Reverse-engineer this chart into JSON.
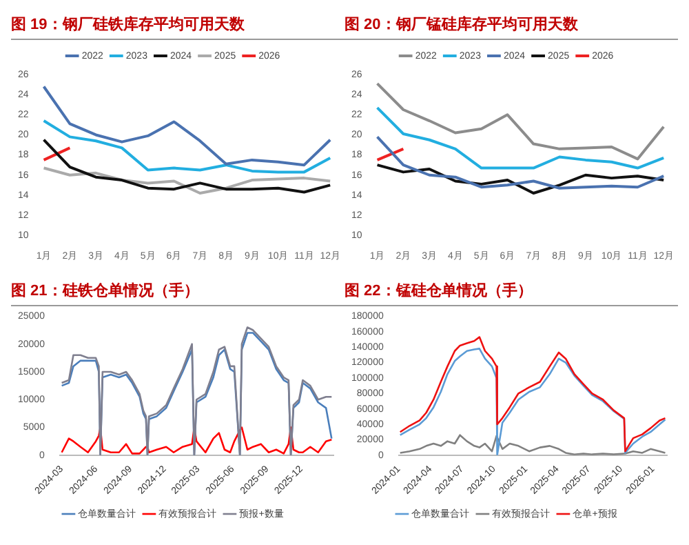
{
  "chart_data": [
    {
      "type": "line",
      "title": "图 19：钢厂硅铁库存平均可用天数",
      "categories": [
        "1月",
        "2月",
        "3月",
        "4月",
        "5月",
        "6月",
        "7月",
        "8月",
        "9月",
        "10月",
        "11月",
        "12月"
      ],
      "ylim": [
        10,
        26
      ],
      "yticks": [
        10,
        12,
        14,
        16,
        18,
        20,
        22,
        24,
        26
      ],
      "legend": "top",
      "marker": "none",
      "line_style": "solid",
      "series": [
        {
          "name": "2022",
          "color": "#4a72b0",
          "values": [
            24.8,
            21.1,
            20.0,
            19.3,
            19.9,
            21.3,
            19.4,
            17.1,
            17.5,
            17.3,
            17.0,
            19.5
          ]
        },
        {
          "name": "2023",
          "color": "#22aee0",
          "values": [
            21.4,
            19.8,
            19.4,
            18.7,
            16.5,
            16.7,
            16.5,
            17.0,
            16.4,
            16.3,
            16.3,
            17.7
          ]
        },
        {
          "name": "2024",
          "color": "#111111",
          "values": [
            19.5,
            16.8,
            15.8,
            15.5,
            14.7,
            14.6,
            15.2,
            14.6,
            14.6,
            14.7,
            14.3,
            15.0
          ]
        },
        {
          "name": "2025",
          "color": "#aaaaaa",
          "values": [
            16.7,
            16.0,
            16.2,
            15.5,
            15.2,
            15.4,
            14.2,
            14.7,
            15.5,
            15.6,
            15.7,
            15.4
          ]
        },
        {
          "name": "2026",
          "color": "#ee2222",
          "values": [
            17.5,
            18.7,
            null,
            null,
            null,
            null,
            null,
            null,
            null,
            null,
            null,
            null
          ]
        }
      ]
    },
    {
      "type": "line",
      "title": "图 20：钢厂锰硅库存平均可用天数",
      "categories": [
        "1月",
        "2月",
        "3月",
        "4月",
        "5月",
        "6月",
        "7月",
        "8月",
        "9月",
        "10月",
        "11月",
        "12月"
      ],
      "ylim": [
        10,
        26
      ],
      "yticks": [
        10,
        12,
        14,
        16,
        18,
        20,
        22,
        24,
        26
      ],
      "legend": "top",
      "marker": "none",
      "line_style": "solid",
      "series": [
        {
          "name": "2022",
          "color": "#8c8c8c",
          "values": [
            25.1,
            22.5,
            21.4,
            20.2,
            20.6,
            22.0,
            19.1,
            18.6,
            18.7,
            18.8,
            17.6,
            20.8
          ]
        },
        {
          "name": "2023",
          "color": "#22aee0",
          "values": [
            22.7,
            20.1,
            19.5,
            18.6,
            16.7,
            16.7,
            16.7,
            17.8,
            17.5,
            17.3,
            16.7,
            17.7
          ]
        },
        {
          "name": "2024",
          "color": "#4a72b0",
          "values": [
            19.8,
            17.0,
            16.0,
            15.8,
            14.8,
            15.0,
            15.4,
            14.7,
            14.8,
            14.9,
            14.8,
            15.9
          ]
        },
        {
          "name": "2025",
          "color": "#111111",
          "values": [
            17.0,
            16.3,
            16.6,
            15.4,
            15.1,
            15.5,
            14.2,
            15.0,
            16.0,
            15.7,
            15.9,
            15.5
          ]
        },
        {
          "name": "2026",
          "color": "#ee2222",
          "values": [
            17.5,
            18.6,
            null,
            null,
            null,
            null,
            null,
            null,
            null,
            null,
            null,
            null
          ]
        }
      ]
    },
    {
      "type": "line",
      "title": "图 21：硅铁仓单情况（手）",
      "x": [
        "2024-03-01",
        "2024-03-20",
        "2024-04-01",
        "2024-04-20",
        "2024-05-10",
        "2024-05-31",
        "2024-06-08",
        "2024-06-12",
        "2024-06-18",
        "2024-07-10",
        "2024-08-01",
        "2024-08-20",
        "2024-09-05",
        "2024-09-25",
        "2024-10-05",
        "2024-10-12",
        "2024-10-16",
        "2024-10-20",
        "2024-11-10",
        "2024-12-05",
        "2024-12-25",
        "2025-01-18",
        "2025-02-12",
        "2025-02-18",
        "2025-02-24",
        "2025-03-20",
        "2025-04-10",
        "2025-04-25",
        "2025-05-10",
        "2025-05-25",
        "2025-06-05",
        "2025-06-20",
        "2025-06-25",
        "2025-07-10",
        "2025-07-25",
        "2025-08-15",
        "2025-09-05",
        "2025-09-25",
        "2025-10-15",
        "2025-10-28",
        "2025-11-03",
        "2025-11-10",
        "2025-11-25",
        "2025-12-05",
        "2025-12-25",
        "2026-01-15",
        "2026-02-05",
        "2026-02-20"
      ],
      "xlim": [
        "2024-02-25",
        "2026-02-25"
      ],
      "xticks": [
        "2024-03",
        "2024-06",
        "2024-09",
        "2024-12",
        "2025-03",
        "2025-06",
        "2025-09",
        "2025-12"
      ],
      "ylim": [
        0,
        25000
      ],
      "yticks": [
        0,
        5000,
        10000,
        15000,
        20000,
        25000
      ],
      "legend": "bottom",
      "marker": "none",
      "line_style": "solid",
      "series": [
        {
          "name": "仓单数量合计",
          "color": "#4a7ebb",
          "values": [
            12500,
            13000,
            16000,
            17000,
            17000,
            17000,
            15000,
            0,
            14000,
            14500,
            14000,
            14500,
            13000,
            10500,
            7500,
            6500,
            0,
            6500,
            7000,
            8500,
            11500,
            15000,
            19000,
            0,
            9500,
            10500,
            14000,
            18000,
            19000,
            15500,
            15000,
            0,
            19000,
            22000,
            22000,
            20500,
            19000,
            15500,
            13500,
            13000,
            0,
            8500,
            9500,
            13000,
            12000,
            9500,
            8500,
            3000
          ]
        },
        {
          "name": "有效预报合计",
          "color": "#ff0000",
          "values": [
            500,
            3000,
            2500,
            1500,
            500,
            2500,
            3500,
            5000,
            1000,
            500,
            500,
            2000,
            300,
            300,
            1000,
            1500,
            1500,
            500,
            1000,
            1500,
            500,
            1500,
            2000,
            5000,
            2500,
            500,
            3000,
            4000,
            1000,
            500,
            2500,
            4500,
            5000,
            1000,
            1500,
            2000,
            500,
            1000,
            300,
            2000,
            5000,
            1000,
            500,
            500,
            1500,
            500,
            2500,
            2800
          ]
        },
        {
          "name": "预报+数量",
          "color": "#7f7f8f",
          "values": [
            13000,
            13500,
            18000,
            18000,
            17500,
            17500,
            16000,
            0,
            15000,
            15000,
            14500,
            15000,
            13500,
            11000,
            8000,
            7000,
            0,
            7000,
            7500,
            9000,
            12000,
            15500,
            20000,
            0,
            10000,
            11000,
            15000,
            19000,
            19500,
            16000,
            16000,
            0,
            20000,
            23000,
            22500,
            21000,
            19500,
            16000,
            14000,
            13500,
            0,
            9000,
            10000,
            13500,
            12500,
            10000,
            10500,
            10500
          ]
        }
      ]
    },
    {
      "type": "line",
      "title": "图 22：锰硅仓单情况（手）",
      "x": [
        "2024-01-05",
        "2024-02-01",
        "2024-03-01",
        "2024-03-20",
        "2024-04-10",
        "2024-05-01",
        "2024-05-20",
        "2024-06-10",
        "2024-06-25",
        "2024-07-15",
        "2024-08-05",
        "2024-08-20",
        "2024-09-05",
        "2024-09-25",
        "2024-10-08",
        "2024-10-10",
        "2024-10-25",
        "2024-11-15",
        "2024-12-10",
        "2025-01-10",
        "2025-02-10",
        "2025-03-10",
        "2025-04-05",
        "2025-04-25",
        "2025-05-20",
        "2025-06-15",
        "2025-07-10",
        "2025-08-10",
        "2025-09-10",
        "2025-10-10",
        "2025-10-13",
        "2025-11-05",
        "2025-12-01",
        "2025-12-25",
        "2026-01-20",
        "2026-02-05"
      ],
      "xlim": [
        "2024-01-01",
        "2026-02-10"
      ],
      "xticks": [
        "2024-01",
        "2024-04",
        "2024-07",
        "2024-10",
        "2025-01",
        "2025-04",
        "2025-07",
        "2025-10",
        "2026-01"
      ],
      "ylim": [
        0,
        180000
      ],
      "yticks": [
        0,
        20000,
        40000,
        60000,
        80000,
        100000,
        120000,
        140000,
        160000,
        180000
      ],
      "legend": "bottom",
      "marker": "none",
      "line_style": "solid",
      "series": [
        {
          "name": "仓单数量合计",
          "color": "#5b9bd5",
          "values": [
            26000,
            33000,
            40000,
            48000,
            62000,
            82000,
            105000,
            122000,
            128000,
            135000,
            137000,
            138000,
            125000,
            115000,
            100000,
            0,
            42000,
            55000,
            72000,
            82000,
            88000,
            105000,
            125000,
            120000,
            103000,
            90000,
            78000,
            70000,
            57000,
            47000,
            3000,
            15000,
            24000,
            30000,
            40000,
            46000
          ]
        },
        {
          "name": "有效预报合计",
          "color": "#808080",
          "values": [
            3000,
            5000,
            8000,
            12000,
            15000,
            12000,
            18000,
            15000,
            26000,
            18000,
            12000,
            10000,
            15000,
            5000,
            25000,
            25000,
            8000,
            15000,
            12000,
            5000,
            10000,
            12000,
            8000,
            3000,
            1000,
            2000,
            1000,
            2000,
            1000,
            2000,
            2000,
            5000,
            3000,
            8000,
            5000,
            3000
          ]
        },
        {
          "name": "仓单+预报",
          "color": "#ee1111",
          "values": [
            30000,
            38000,
            45000,
            55000,
            72000,
            95000,
            115000,
            135000,
            142000,
            145000,
            148000,
            153000,
            135000,
            125000,
            115000,
            40000,
            48000,
            62000,
            80000,
            88000,
            95000,
            115000,
            133000,
            125000,
            105000,
            92000,
            80000,
            72000,
            58000,
            48000,
            5000,
            22000,
            27000,
            35000,
            45000,
            48000
          ]
        }
      ]
    }
  ]
}
